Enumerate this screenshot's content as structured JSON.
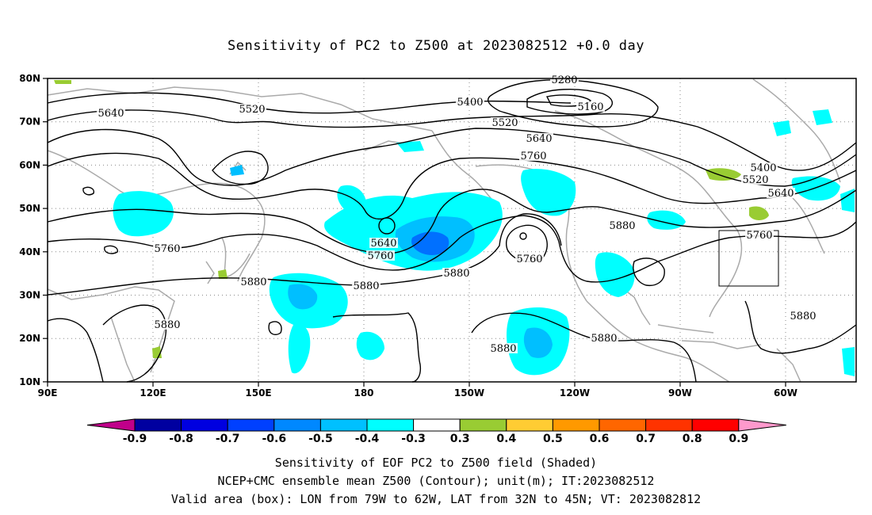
{
  "title": "Sensitivity of PC2 to Z500 at 2023082512 +0.0 day",
  "map": {
    "lat_ticks": [
      "80N",
      "70N",
      "60N",
      "50N",
      "40N",
      "30N",
      "20N",
      "10N"
    ],
    "lon_ticks": [
      "90E",
      "120E",
      "150E",
      "180",
      "150W",
      "120W",
      "90W",
      "60W"
    ],
    "lon_range": [
      "90E",
      "40W"
    ],
    "lat_range": [
      "10N",
      "80N"
    ],
    "grid": "dotted",
    "valid_box": {
      "lon_west": "79W",
      "lon_east": "62W",
      "lat_south": "32N",
      "lat_north": "45N"
    },
    "contour_labels": [
      "5280",
      "5160",
      "5400",
      "5520",
      "5640",
      "5520",
      "5640",
      "5760",
      "5400",
      "5520",
      "5640",
      "5760",
      "5880",
      "5760",
      "5640",
      "5760",
      "5880",
      "5880",
      "5760",
      "5880",
      "5880",
      "5880",
      "5880",
      "5880"
    ],
    "colors": {
      "coast": "#aaaaaa",
      "contour": "#000000",
      "neg_weak": "#00ffff",
      "neg_mid": "#00bfff",
      "neg_strong": "#0070ff",
      "pos_weak": "#99cc33"
    }
  },
  "colorbar": {
    "labels": [
      "-0.9",
      "-0.8",
      "-0.7",
      "-0.6",
      "-0.5",
      "-0.4",
      "-0.3",
      "0.3",
      "0.4",
      "0.5",
      "0.6",
      "0.7",
      "0.8",
      "0.9"
    ],
    "colors": [
      "#c0008a",
      "#0000a0",
      "#0000e0",
      "#0040ff",
      "#0088ff",
      "#00c0ff",
      "#00ffff",
      "#ffffff",
      "#99cc33",
      "#ffcc33",
      "#ff9900",
      "#ff6600",
      "#ff3300",
      "#ff0000",
      "#ff99cc"
    ]
  },
  "captions": [
    "Sensitivity of EOF PC2 to Z500 field (Shaded)",
    "NCEP+CMC ensemble mean Z500 (Contour); unit(m); IT:2023082512",
    "Valid area (box): LON from 79W to 62W, LAT from 32N to 45N; VT: 2023082812"
  ]
}
